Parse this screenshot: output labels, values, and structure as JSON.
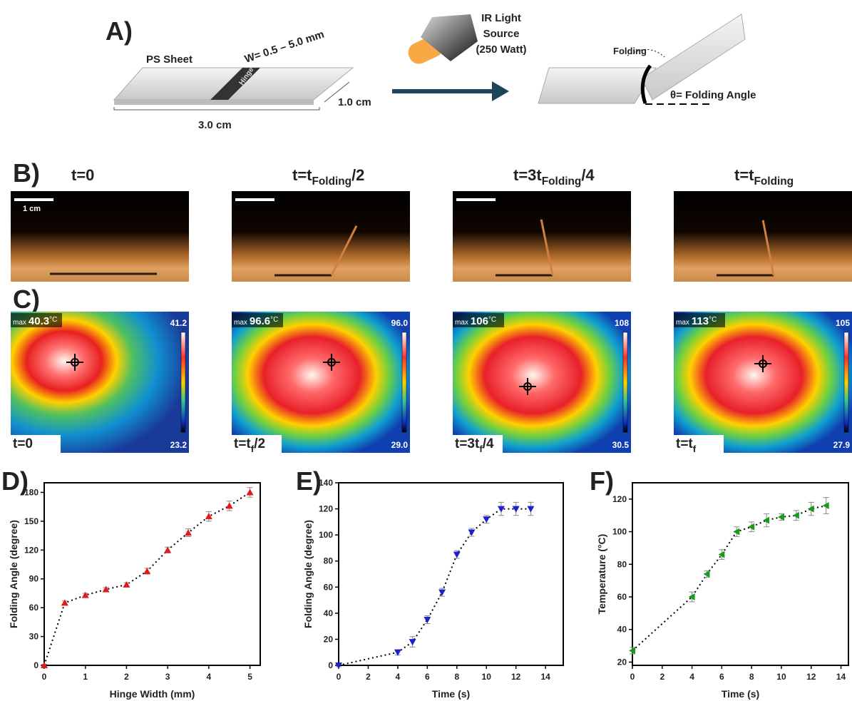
{
  "panel_a": {
    "label": "A)",
    "sheet_label": "PS Sheet",
    "width_label": "W= 0.5 – 5.0 mm",
    "hinge_label": "Hinge",
    "depth_label": "1.0 cm",
    "length_label": "3.0 cm",
    "light_label": [
      "IR Light",
      "Source",
      "(250 Watt)"
    ],
    "folding_label": "Folding",
    "angle_label": "θ= Folding Angle"
  },
  "panel_b": {
    "label": "B)",
    "scale_label": "1 cm",
    "frames": [
      {
        "title": [
          "t=0"
        ]
      },
      {
        "title": [
          "t=t",
          "Folding",
          "/2"
        ]
      },
      {
        "title": [
          "t=3t",
          "Folding",
          "/4"
        ]
      },
      {
        "title": [
          "t=t",
          "Folding"
        ]
      }
    ]
  },
  "panel_c": {
    "label": "C)",
    "max_label": "max",
    "unit": "°C",
    "frames": [
      {
        "max": "40.3",
        "scale_max": "41.2",
        "scale_min": "23.2",
        "time": [
          "t=0"
        ]
      },
      {
        "max": "96.6",
        "scale_max": "96.0",
        "scale_min": "29.0",
        "time": [
          "t=t",
          "f",
          "/2"
        ]
      },
      {
        "max": "106",
        "scale_max": "108",
        "scale_min": "30.5",
        "time": [
          "t=3t",
          "f",
          "/4"
        ]
      },
      {
        "max": "113",
        "scale_max": "105",
        "scale_min": "27.9",
        "time": [
          "t=t",
          "f"
        ]
      }
    ]
  },
  "chart_data": [
    {
      "type": "line",
      "panel_label": "D)",
      "xlabel": "Hinge Width (mm)",
      "ylabel": "Folding Angle (degree)",
      "color": "#e31a1c",
      "marker": "up",
      "x": [
        0,
        0.5,
        1,
        1.5,
        2,
        2.5,
        3,
        3.5,
        4,
        4.5,
        5
      ],
      "values": [
        0,
        65,
        73,
        79,
        84,
        98,
        120,
        138,
        155,
        166,
        180
      ],
      "errors": [
        1,
        2,
        2,
        2,
        2,
        3,
        3,
        4,
        5,
        5,
        5
      ],
      "xlim": [
        0,
        5.25
      ],
      "ylim": [
        0,
        190
      ],
      "xticks": [
        0,
        1,
        2,
        3,
        4,
        5
      ],
      "yticks": [
        0,
        30,
        60,
        90,
        120,
        150,
        180
      ]
    },
    {
      "type": "line",
      "panel_label": "E)",
      "xlabel": "Time (s)",
      "ylabel": "Folding Angle (degree)",
      "color": "#1f1fd0",
      "marker": "down",
      "x": [
        0,
        4,
        5,
        6,
        7,
        8,
        9,
        10,
        11,
        12,
        13
      ],
      "values": [
        0,
        10,
        18,
        35,
        56,
        85,
        102,
        112,
        120,
        120,
        120
      ],
      "errors": [
        1,
        2,
        4,
        3,
        3,
        3,
        3,
        3,
        5,
        5,
        5
      ],
      "xlim": [
        0,
        15.2
      ],
      "ylim": [
        0,
        140
      ],
      "xticks": [
        0,
        2,
        4,
        6,
        8,
        10,
        12,
        14
      ],
      "yticks": [
        0,
        20,
        40,
        60,
        80,
        100,
        120,
        140
      ]
    },
    {
      "type": "line",
      "panel_label": "F)",
      "xlabel": "Time (s)",
      "ylabel": "Temperature (°C)",
      "color": "#1a9a1a",
      "marker": "left",
      "x": [
        0,
        4,
        5,
        6,
        7,
        8,
        9,
        10,
        11,
        12,
        13
      ],
      "values": [
        27,
        60,
        74,
        86,
        100,
        103,
        107,
        109,
        110,
        114,
        116
      ],
      "errors": [
        2,
        3,
        2,
        3,
        3,
        3,
        4,
        2,
        3,
        4,
        5
      ],
      "xlim": [
        0,
        14.5
      ],
      "ylim": [
        18,
        130
      ],
      "xticks": [
        0,
        2,
        4,
        6,
        8,
        10,
        12,
        14
      ],
      "yticks": [
        20,
        40,
        60,
        80,
        100,
        120
      ]
    }
  ]
}
